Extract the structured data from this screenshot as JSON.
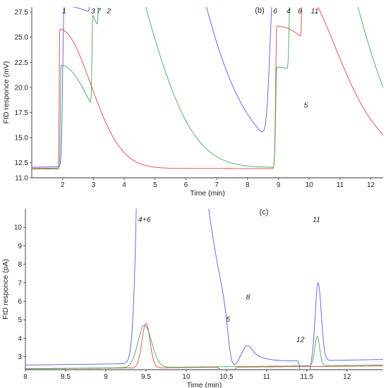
{
  "chart_data": [
    {
      "type": "line",
      "panel_label": "(b)",
      "xlabel": "Time (min)",
      "ylabel": "FID responce (mV)",
      "xlim": [
        1.0,
        12.4
      ],
      "ylim": [
        11.0,
        28.0
      ],
      "xticks": [
        2,
        3,
        4,
        5,
        6,
        7,
        8,
        9,
        10,
        11,
        12
      ],
      "yticks": [
        11.0,
        12.5,
        15.0,
        17.5,
        20.0,
        22.5,
        25.0,
        27.5
      ],
      "ytick_labels": [
        "11.0",
        "12.5",
        "15.0",
        "17.5",
        "20.0",
        "22.5",
        "25.0",
        "27.5"
      ],
      "grid": false,
      "series": [
        {
          "color": "#5a5ae0",
          "baseline": [
            [
              1.0,
              12.05
            ],
            [
              1.9,
              12.1
            ],
            [
              2.2,
              12.3
            ],
            [
              4.0,
              12.2
            ],
            [
              8.6,
              12.3
            ],
            [
              9.0,
              12.45
            ],
            [
              12.4,
              12.35
            ]
          ],
          "peaks": [
            [
              2.05,
              28,
              0.045,
              3.0
            ],
            [
              3.0,
              28,
              0.05,
              2.0
            ],
            [
              3.18,
              28,
              0.05,
              2.0
            ],
            [
              3.52,
              28,
              0.05,
              2.0
            ],
            [
              8.85,
              28,
              0.12,
              3.0
            ],
            [
              9.35,
              28,
              0.07,
              2.0
            ],
            [
              9.72,
              28,
              0.05,
              2.0
            ],
            [
              10.2,
              28,
              0.05,
              2.0
            ]
          ]
        },
        {
          "color": "#e04444",
          "baseline": [
            [
              1.0,
              11.95
            ],
            [
              12.4,
              11.9
            ]
          ],
          "peaks": [
            [
              1.91,
              25.8,
              0.018,
              1.0
            ],
            [
              8.95,
              26.1,
              0.035,
              2.0
            ],
            [
              9.78,
              17.3,
              0.02,
              1.0
            ]
          ]
        },
        {
          "color": "#44aa55",
          "baseline": [
            [
              1.0,
              11.85
            ],
            [
              12.4,
              12.1
            ]
          ],
          "peaks": [
            [
              1.95,
              22.2,
              0.02,
              1.0
            ],
            [
              2.98,
              21.1,
              0.025,
              1.5
            ],
            [
              3.2,
              20.5,
              0.025,
              1.5
            ],
            [
              3.5,
              19.9,
              0.025,
              1.5
            ],
            [
              8.95,
              22.0,
              0.035,
              2.0
            ],
            [
              9.38,
              20.0,
              0.03,
              1.5
            ],
            [
              9.82,
              14.2,
              0.02,
              1.0
            ],
            [
              10.22,
              25.0,
              0.025,
              1.5
            ]
          ]
        }
      ],
      "peak_labels": [
        {
          "text": "1",
          "x": 2.05
        },
        {
          "text": "3",
          "x": 2.99
        },
        {
          "text": "7",
          "x": 3.17
        },
        {
          "text": "2",
          "x": 3.5
        },
        {
          "text": "6",
          "x": 8.9
        },
        {
          "text": "4",
          "x": 9.33
        },
        {
          "text": "8",
          "x": 9.7
        },
        {
          "text": "11",
          "x": 10.18
        },
        {
          "text": "5",
          "x": 9.8
        }
      ]
    },
    {
      "type": "line",
      "panel_label": "(c)",
      "xlabel": "Time (min)",
      "ylabel": "FID responce (pA)",
      "xlim": [
        8.0,
        12.45
      ],
      "ylim": [
        2.3,
        11.0
      ],
      "xticks": [
        8,
        8.5,
        9,
        9.5,
        10,
        10.5,
        11,
        11.5,
        12
      ],
      "yticks": [
        3,
        4,
        5,
        6,
        7,
        8,
        9,
        10
      ],
      "grid": false,
      "series": [
        {
          "color": "#5a5ae0",
          "baseline": [
            [
              8.0,
              2.55
            ],
            [
              9.25,
              2.62
            ],
            [
              12.45,
              2.85
            ]
          ],
          "peaks": [
            [
              9.5,
              40.0,
              0.07,
              0.45
            ],
            [
              10.57,
              0.55,
              0.05,
              0.08
            ],
            [
              10.77,
              3.0,
              0.04,
              0.05
            ],
            [
              11.45,
              0.35,
              0.02,
              0.05
            ],
            [
              11.64,
              7.0,
              0.035,
              0.04
            ]
          ]
        },
        {
          "color": "#e04444",
          "baseline": [
            [
              8.0,
              2.35
            ],
            [
              12.45,
              2.5
            ]
          ],
          "peaks": [
            [
              9.5,
              4.8,
              0.05,
              0.05
            ],
            [
              10.52,
              1.05,
              0.045,
              0.04
            ]
          ]
        },
        {
          "color": "#44aa55",
          "baseline": [
            [
              8.0,
              2.35
            ],
            [
              12.45,
              2.55
            ]
          ],
          "peaks": [
            [
              9.48,
              4.7,
              0.08,
              0.09
            ],
            [
              11.63,
              4.1,
              0.03,
              0.03
            ]
          ]
        }
      ],
      "peak_labels": [
        {
          "text": "4+6",
          "x": 9.48,
          "y": 10.3
        },
        {
          "text": "5",
          "x": 10.52,
          "y": 4.9
        },
        {
          "text": "8",
          "x": 10.77,
          "y": 6.1
        },
        {
          "text": "12",
          "x": 11.42,
          "y": 3.8
        },
        {
          "text": "11",
          "x": 11.62,
          "y": 10.3
        }
      ]
    }
  ]
}
